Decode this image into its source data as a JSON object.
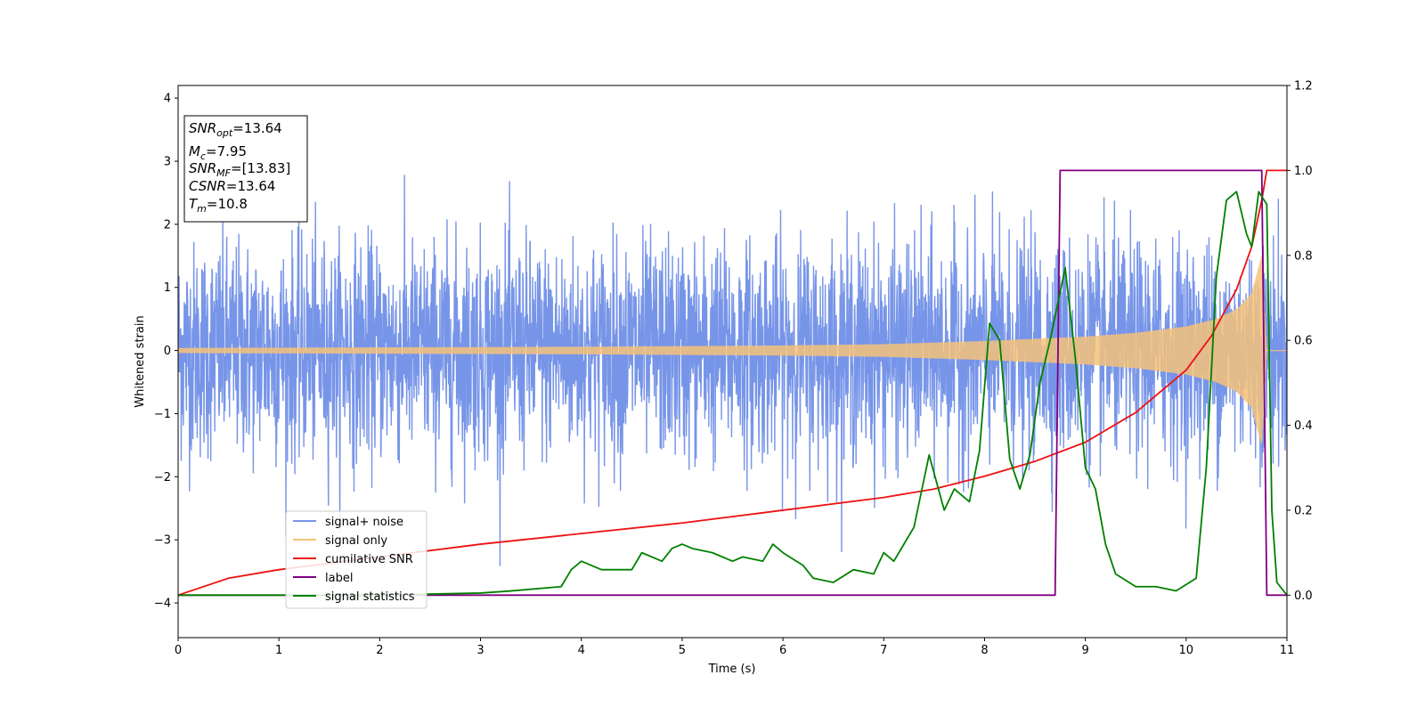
{
  "chart_data": {
    "type": "line",
    "xlabel": "Time (s)",
    "ylabel": "Whitened strain",
    "xlim": [
      0,
      11
    ],
    "ylim": [
      -4.55,
      4.2
    ],
    "y2lim": [
      -0.1,
      1.2
    ],
    "xticks": [
      0,
      1,
      2,
      3,
      4,
      5,
      6,
      7,
      8,
      9,
      10,
      11
    ],
    "yticks": [
      -4,
      -3,
      -2,
      -1,
      0,
      1,
      2,
      3,
      4
    ],
    "y2ticks": [
      0.0,
      0.2,
      0.4,
      0.6,
      0.8,
      1.0,
      1.2
    ],
    "legend_location": "lower-left",
    "annotation": {
      "lines": [
        {
          "var": "SNR",
          "sub": "opt",
          "value": "=13.64"
        },
        {
          "var": "M",
          "sub": "c",
          "value": "=7.95"
        },
        {
          "var": "SNR",
          "sub": "MF",
          "value": "=[13.83]"
        },
        {
          "var": "CSNR",
          "sub": "",
          "value": "=13.64"
        },
        {
          "var": "T",
          "sub": "m",
          "value": "=10.8"
        }
      ]
    },
    "series": [
      {
        "name": "signal+ noise",
        "color": "#7795e8",
        "axis": "left",
        "kind": "noise",
        "noise_std": 0.85,
        "x": [
          0,
          11
        ],
        "y": [
          0,
          0
        ]
      },
      {
        "name": "signal only",
        "color": "#f5c27a",
        "axis": "left",
        "kind": "chirp",
        "x": [
          0,
          2,
          4,
          6,
          7,
          8,
          9,
          9.5,
          10,
          10.3,
          10.5,
          10.65,
          10.75,
          10.8,
          11
        ],
        "y": [
          0.04,
          0.05,
          0.06,
          0.08,
          0.1,
          0.15,
          0.22,
          0.28,
          0.38,
          0.5,
          0.65,
          0.9,
          1.5,
          0,
          0
        ]
      },
      {
        "name": "cumilative SNR",
        "color": "#ee1111",
        "axis": "right",
        "x": [
          0,
          0.5,
          1,
          2,
          3,
          4,
          5,
          6,
          7,
          7.5,
          8,
          8.5,
          9,
          9.5,
          10,
          10.25,
          10.5,
          10.65,
          10.75,
          10.8,
          11
        ],
        "y": [
          0.0,
          0.04,
          0.06,
          0.09,
          0.12,
          0.145,
          0.17,
          0.2,
          0.23,
          0.25,
          0.28,
          0.315,
          0.36,
          0.43,
          0.53,
          0.61,
          0.72,
          0.82,
          0.93,
          1.0,
          1.0
        ]
      },
      {
        "name": "label",
        "color": "#800080",
        "axis": "right",
        "x": [
          0,
          8.7,
          8.75,
          10.75,
          10.8,
          11
        ],
        "y": [
          0,
          0,
          1,
          1,
          0,
          0
        ]
      },
      {
        "name": "signal statistics",
        "color": "#008000",
        "axis": "right",
        "x": [
          0,
          2,
          3,
          3.3,
          3.8,
          3.9,
          4.0,
          4.2,
          4.5,
          4.6,
          4.8,
          4.9,
          5.0,
          5.1,
          5.3,
          5.5,
          5.6,
          5.8,
          5.9,
          6.0,
          6.2,
          6.3,
          6.5,
          6.7,
          6.9,
          7.0,
          7.1,
          7.3,
          7.45,
          7.6,
          7.7,
          7.85,
          7.95,
          8.05,
          8.15,
          8.25,
          8.35,
          8.45,
          8.55,
          8.65,
          8.8,
          8.9,
          9.0,
          9.1,
          9.2,
          9.3,
          9.5,
          9.7,
          9.9,
          10.1,
          10.2,
          10.3,
          10.4,
          10.5,
          10.6,
          10.65,
          10.72,
          10.8,
          10.85,
          10.9,
          11
        ],
        "y": [
          0,
          0,
          0.005,
          0.01,
          0.02,
          0.06,
          0.08,
          0.06,
          0.06,
          0.1,
          0.08,
          0.11,
          0.12,
          0.11,
          0.1,
          0.08,
          0.09,
          0.08,
          0.12,
          0.1,
          0.07,
          0.04,
          0.03,
          0.06,
          0.05,
          0.1,
          0.08,
          0.16,
          0.33,
          0.2,
          0.25,
          0.22,
          0.34,
          0.64,
          0.6,
          0.32,
          0.25,
          0.33,
          0.5,
          0.6,
          0.77,
          0.56,
          0.3,
          0.25,
          0.12,
          0.05,
          0.02,
          0.02,
          0.01,
          0.04,
          0.3,
          0.75,
          0.93,
          0.95,
          0.85,
          0.82,
          0.95,
          0.92,
          0.2,
          0.03,
          0.0
        ]
      }
    ]
  }
}
